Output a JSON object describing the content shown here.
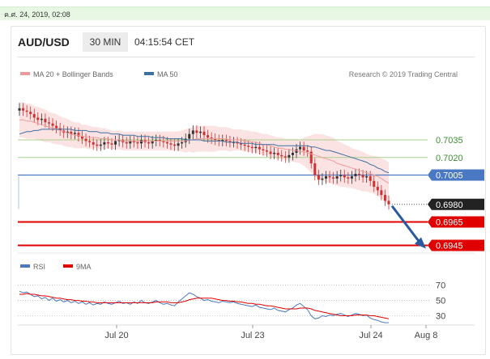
{
  "date_stamp": "ค.ศ. 24, 2019, 02:08",
  "header": {
    "symbol": "AUD/USD",
    "timeframe": "30 MIN",
    "time": "04:15:54 CET"
  },
  "legend": {
    "ma20": "MA 20 + Bollinger Bands",
    "ma50": "MA 50",
    "credit": "Research © 2019 Trading Central",
    "rsi": "RSI",
    "nine_ma": "9MA"
  },
  "colors": {
    "up_candle": "#333333",
    "down_candle": "#d32f2f",
    "ma20": "#ef9a9a",
    "bands_fill": "#fbe3e3",
    "ma50": "#3d6f9f",
    "level_green": "#a8d18d",
    "level_blue": "#4a78c2",
    "level_red": "#e00000",
    "price_tag": "#222222",
    "arrow": "#2b59a0",
    "rsi": "#4a78c2",
    "rsi_ma": "#e00000"
  },
  "chart_data": [
    {
      "type": "candlestick",
      "title": "AUD/USD",
      "x_ticks": [
        "Jul 20",
        "Jul 23",
        "Jul 24",
        "Aug 8"
      ],
      "ylim": [
        0.6935,
        0.7075
      ],
      "close": [
        0.7062,
        0.706,
        0.7059,
        0.7057,
        0.7054,
        0.7052,
        0.7053,
        0.705,
        0.7049,
        0.7047,
        0.7045,
        0.7043,
        0.7041,
        0.7042,
        0.704,
        0.7041,
        0.7038,
        0.7036,
        0.7034,
        0.7033,
        0.7031,
        0.703,
        0.7031,
        0.7033,
        0.7032,
        0.7031,
        0.7034,
        0.7035,
        0.7033,
        0.7032,
        0.7034,
        0.7033,
        0.7032,
        0.7035,
        0.7033,
        0.7032,
        0.7034,
        0.7035,
        0.7034,
        0.7033,
        0.7032,
        0.7031,
        0.703,
        0.7032,
        0.7033,
        0.7036,
        0.704,
        0.7043,
        0.7041,
        0.7042,
        0.7039,
        0.7037,
        0.7036,
        0.7035,
        0.7034,
        0.7035,
        0.7034,
        0.7033,
        0.7033,
        0.7032,
        0.7031,
        0.703,
        0.7029,
        0.7028,
        0.7029,
        0.7027,
        0.7026,
        0.7025,
        0.7023,
        0.7024,
        0.7022,
        0.7021,
        0.702,
        0.7022,
        0.7024,
        0.7027,
        0.7029,
        0.7026,
        0.7025,
        0.7015,
        0.7005,
        0.7001,
        0.7002,
        0.7004,
        0.7003,
        0.7002,
        0.7004,
        0.7005,
        0.7003,
        0.7002,
        0.7004,
        0.7006,
        0.7005,
        0.7003,
        0.7004,
        0.7,
        0.6995,
        0.6992,
        0.6988,
        0.6983,
        0.698
      ],
      "ma20": [
        0.7052,
        0.7052,
        0.7051,
        0.7051,
        0.705,
        0.7049,
        0.7048,
        0.7047,
        0.7046,
        0.7045,
        0.7044,
        0.7043,
        0.7042,
        0.7041,
        0.704,
        0.7039,
        0.7039,
        0.7038,
        0.7038,
        0.7037,
        0.7037,
        0.7037,
        0.7036,
        0.7036,
        0.7036,
        0.7035,
        0.7035,
        0.7035,
        0.7034,
        0.7034,
        0.7034,
        0.7034,
        0.7034,
        0.7034,
        0.7034,
        0.7034,
        0.7034,
        0.7034,
        0.7034,
        0.7034,
        0.7034,
        0.7034,
        0.7034,
        0.7034,
        0.7034,
        0.7034,
        0.7035,
        0.7035,
        0.7036,
        0.7036,
        0.7036,
        0.7036,
        0.7036,
        0.7036,
        0.7036,
        0.7036,
        0.7036,
        0.7035,
        0.7035,
        0.7035,
        0.7035,
        0.7034,
        0.7034,
        0.7033,
        0.7033,
        0.7032,
        0.7031,
        0.7031,
        0.703,
        0.7029,
        0.7028,
        0.7028,
        0.7027,
        0.7027,
        0.7026,
        0.7026,
        0.7025,
        0.7025,
        0.7024,
        0.7023,
        0.7022,
        0.7021,
        0.702,
        0.7019,
        0.7018,
        0.7017,
        0.7015,
        0.7014,
        0.7013,
        0.7012,
        0.7011,
        0.701,
        0.7009,
        0.7008,
        0.7007,
        0.7006,
        0.7005,
        0.7004,
        0.7002,
        0.7,
        0.6998
      ],
      "band_width": [
        0.0015,
        0.0015,
        0.0015,
        0.0015,
        0.0014,
        0.0014,
        0.0014,
        0.0014,
        0.0013,
        0.0013,
        0.0013,
        0.0012,
        0.0012,
        0.0012,
        0.0011,
        0.0011,
        0.0011,
        0.001,
        0.001,
        0.001,
        0.0009,
        0.0009,
        0.0009,
        0.0009,
        0.0008,
        0.0008,
        0.0008,
        0.0008,
        0.0008,
        0.0008,
        0.0008,
        0.0008,
        0.0008,
        0.0008,
        0.0008,
        0.0008,
        0.0008,
        0.0008,
        0.0008,
        0.0008,
        0.0008,
        0.0008,
        0.0008,
        0.0008,
        0.0009,
        0.001,
        0.001,
        0.0011,
        0.0011,
        0.0011,
        0.0011,
        0.0011,
        0.0011,
        0.0011,
        0.001,
        0.001,
        0.001,
        0.001,
        0.0009,
        0.0009,
        0.0009,
        0.0009,
        0.0009,
        0.0009,
        0.0009,
        0.0009,
        0.0009,
        0.0009,
        0.0009,
        0.0009,
        0.0009,
        0.0009,
        0.0009,
        0.0009,
        0.001,
        0.001,
        0.001,
        0.0012,
        0.0014,
        0.0016,
        0.0018,
        0.0019,
        0.002,
        0.002,
        0.002,
        0.002,
        0.0019,
        0.0019,
        0.0018,
        0.0018,
        0.0017,
        0.0017,
        0.0017,
        0.0017,
        0.0016,
        0.0016,
        0.0016,
        0.0017,
        0.0017,
        0.0018,
        0.0018
      ],
      "ma50": [
        0.704,
        0.7041,
        0.7042,
        0.7042,
        0.7043,
        0.7043,
        0.7044,
        0.7044,
        0.7044,
        0.7044,
        0.7044,
        0.7044,
        0.7044,
        0.7044,
        0.7044,
        0.7043,
        0.7043,
        0.7043,
        0.7043,
        0.7042,
        0.7042,
        0.7042,
        0.7041,
        0.7041,
        0.7041,
        0.704,
        0.704,
        0.704,
        0.7039,
        0.7039,
        0.7039,
        0.7039,
        0.7038,
        0.7038,
        0.7038,
        0.7038,
        0.7037,
        0.7037,
        0.7037,
        0.7037,
        0.7036,
        0.7036,
        0.7036,
        0.7036,
        0.7036,
        0.7035,
        0.7035,
        0.7035,
        0.7035,
        0.7035,
        0.7034,
        0.7034,
        0.7034,
        0.7034,
        0.7034,
        0.7034,
        0.7033,
        0.7033,
        0.7033,
        0.7033,
        0.7032,
        0.7032,
        0.7032,
        0.7032,
        0.7031,
        0.7031,
        0.7031,
        0.7031,
        0.7031,
        0.7031,
        0.703,
        0.703,
        0.703,
        0.703,
        0.703,
        0.703,
        0.703,
        0.703,
        0.703,
        0.7029,
        0.7029,
        0.7028,
        0.7027,
        0.7026,
        0.7026,
        0.7025,
        0.7024,
        0.7023,
        0.7022,
        0.7021,
        0.702,
        0.7019,
        0.7018,
        0.7017,
        0.7016,
        0.7014,
        0.7013,
        0.7011,
        0.701,
        0.7008,
        0.7007
      ],
      "levels": [
        {
          "value": 0.7035,
          "label": "0.7035",
          "style": "green"
        },
        {
          "value": 0.702,
          "label": "0.7020",
          "style": "green"
        },
        {
          "value": 0.7005,
          "label": "0.7005",
          "style": "blue"
        },
        {
          "value": 0.698,
          "label": "0.6980",
          "style": "current"
        },
        {
          "value": 0.6965,
          "label": "0.6965",
          "style": "red"
        },
        {
          "value": 0.6945,
          "label": "0.6945",
          "style": "red"
        }
      ],
      "forecast_arrow": {
        "from": 0.698,
        "to": 0.6945
      }
    },
    {
      "type": "line",
      "title": "RSI",
      "ylim": [
        20,
        78
      ],
      "y_ticks": [
        70,
        50,
        30
      ],
      "series": [
        {
          "name": "RSI",
          "values": [
            62,
            60,
            61,
            58,
            55,
            56,
            52,
            54,
            50,
            53,
            49,
            51,
            48,
            50,
            47,
            49,
            46,
            48,
            45,
            47,
            44,
            46,
            45,
            48,
            46,
            45,
            47,
            49,
            46,
            47,
            45,
            48,
            46,
            50,
            47,
            46,
            48,
            50,
            47,
            45,
            46,
            44,
            43,
            48,
            52,
            56,
            60,
            58,
            55,
            53,
            50,
            51,
            49,
            48,
            47,
            49,
            48,
            47,
            48,
            46,
            45,
            44,
            43,
            42,
            44,
            41,
            40,
            39,
            38,
            40,
            37,
            36,
            35,
            38,
            40,
            44,
            46,
            42,
            38,
            30,
            26,
            27,
            30,
            29,
            31,
            30,
            32,
            33,
            31,
            29,
            31,
            33,
            32,
            30,
            31,
            27,
            25,
            24,
            22,
            21,
            21
          ]
        },
        {
          "name": "9MA",
          "values": [
            58,
            58,
            59,
            58,
            58,
            57,
            56,
            56,
            55,
            54,
            53,
            53,
            52,
            51,
            51,
            50,
            50,
            49,
            49,
            48,
            48,
            47,
            47,
            47,
            47,
            47,
            47,
            47,
            47,
            47,
            47,
            47,
            47,
            47,
            47,
            47,
            47,
            48,
            48,
            48,
            48,
            47,
            47,
            47,
            48,
            49,
            51,
            52,
            53,
            53,
            53,
            53,
            53,
            52,
            51,
            50,
            50,
            49,
            49,
            48,
            48,
            47,
            46,
            46,
            45,
            45,
            44,
            43,
            43,
            42,
            41,
            40,
            39,
            39,
            39,
            39,
            40,
            40,
            40,
            39,
            37,
            36,
            35,
            34,
            33,
            32,
            31,
            30,
            30,
            30,
            30,
            31,
            31,
            31,
            31,
            30,
            30,
            29,
            28,
            27,
            26
          ]
        }
      ]
    }
  ]
}
